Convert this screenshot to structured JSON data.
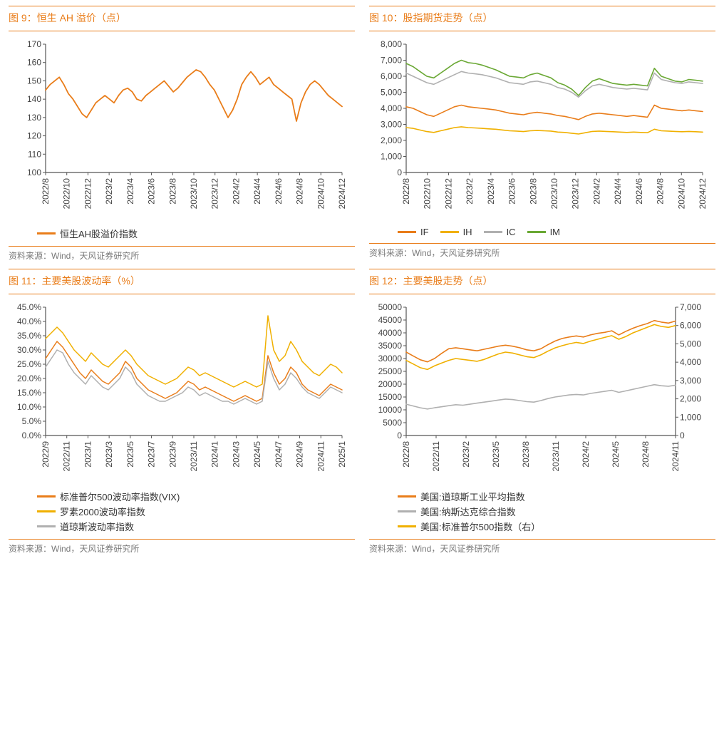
{
  "colors": {
    "orange": "#e97d1a",
    "yellow": "#f0b000",
    "gray": "#b0b0b0",
    "green": "#6aa834",
    "axis": "#555555",
    "grid": "#d9d9d9",
    "text": "#444444"
  },
  "source_text": "资料来源：Wind，天风证券研究所",
  "charts": {
    "c9": {
      "title_prefix": "图 9：",
      "title": "恒生 AH 溢价（点）",
      "type": "line",
      "ylim": [
        100,
        170
      ],
      "ytick_step": 10,
      "x_labels": [
        "2022/8",
        "2022/10",
        "2022/12",
        "2023/2",
        "2023/4",
        "2023/6",
        "2023/8",
        "2023/10",
        "2023/12",
        "2024/2",
        "2024/4",
        "2024/6",
        "2024/8",
        "2024/10",
        "2024/12"
      ],
      "series": [
        {
          "name": "恒生AH股溢价指数",
          "color": "#e97d1a",
          "line_width": 1.8,
          "data": [
            145,
            148,
            150,
            152,
            148,
            143,
            140,
            136,
            132,
            130,
            134,
            138,
            140,
            142,
            140,
            138,
            142,
            145,
            146,
            144,
            140,
            139,
            142,
            144,
            146,
            148,
            150,
            147,
            144,
            146,
            149,
            152,
            154,
            156,
            155,
            152,
            148,
            145,
            140,
            135,
            130,
            134,
            140,
            148,
            152,
            155,
            152,
            148,
            150,
            152,
            148,
            146,
            144,
            142,
            140,
            128,
            138,
            144,
            148,
            150,
            148,
            145,
            142,
            140,
            138,
            136
          ]
        }
      ],
      "legend": [
        {
          "label": "恒生AH股溢价指数",
          "color": "#e97d1a"
        }
      ]
    },
    "c10": {
      "title_prefix": "图 10：",
      "title": "股指期货走势（点）",
      "type": "line",
      "ylim": [
        0,
        8000
      ],
      "ytick_step": 1000,
      "ytick_format": "comma",
      "x_labels": [
        "2022/8",
        "2022/10",
        "2022/12",
        "2023/2",
        "2023/4",
        "2023/6",
        "2023/8",
        "2023/10",
        "2023/12",
        "2024/2",
        "2024/4",
        "2024/6",
        "2024/8",
        "2024/10",
        "2024/12"
      ],
      "series": [
        {
          "name": "IF",
          "color": "#e97d1a",
          "line_width": 1.6,
          "data": [
            4100,
            4000,
            3800,
            3600,
            3500,
            3700,
            3900,
            4100,
            4200,
            4100,
            4050,
            4000,
            3950,
            3900,
            3800,
            3700,
            3650,
            3600,
            3700,
            3750,
            3700,
            3650,
            3550,
            3500,
            3400,
            3300,
            3500,
            3650,
            3700,
            3650,
            3600,
            3550,
            3500,
            3550,
            3500,
            3450,
            4200,
            4000,
            3950,
            3900,
            3850,
            3900,
            3850,
            3800
          ]
        },
        {
          "name": "IH",
          "color": "#f0b000",
          "line_width": 1.6,
          "data": [
            2800,
            2750,
            2650,
            2550,
            2500,
            2600,
            2700,
            2800,
            2850,
            2800,
            2780,
            2750,
            2720,
            2700,
            2650,
            2600,
            2580,
            2550,
            2600,
            2620,
            2600,
            2580,
            2520,
            2500,
            2450,
            2400,
            2480,
            2560,
            2580,
            2560,
            2540,
            2520,
            2500,
            2520,
            2500,
            2480,
            2700,
            2600,
            2580,
            2560,
            2540,
            2560,
            2540,
            2520
          ]
        },
        {
          "name": "IC",
          "color": "#b0b0b0",
          "line_width": 1.6,
          "data": [
            6200,
            6000,
            5800,
            5600,
            5500,
            5700,
            5900,
            6100,
            6300,
            6200,
            6150,
            6100,
            6000,
            5900,
            5750,
            5600,
            5550,
            5500,
            5650,
            5700,
            5600,
            5500,
            5300,
            5200,
            5000,
            4700,
            5100,
            5400,
            5500,
            5400,
            5300,
            5250,
            5200,
            5250,
            5200,
            5150,
            6200,
            5800,
            5700,
            5600,
            5550,
            5650,
            5600,
            5550
          ]
        },
        {
          "name": "IM",
          "color": "#6aa834",
          "line_width": 1.6,
          "data": [
            6800,
            6600,
            6300,
            6000,
            5900,
            6200,
            6500,
            6800,
            7000,
            6850,
            6800,
            6700,
            6550,
            6400,
            6200,
            6000,
            5950,
            5900,
            6100,
            6200,
            6050,
            5900,
            5600,
            5450,
            5200,
            4800,
            5300,
            5700,
            5850,
            5700,
            5550,
            5500,
            5450,
            5500,
            5450,
            5400,
            6500,
            6000,
            5850,
            5700,
            5650,
            5800,
            5750,
            5700
          ]
        }
      ],
      "legend": [
        {
          "label": "IF",
          "color": "#e97d1a"
        },
        {
          "label": "IH",
          "color": "#f0b000"
        },
        {
          "label": "IC",
          "color": "#b0b0b0"
        },
        {
          "label": "IM",
          "color": "#6aa834"
        }
      ]
    },
    "c11": {
      "title_prefix": "图 11：",
      "title": "主要美股波动率（%）",
      "type": "line",
      "ylim": [
        0,
        45
      ],
      "ytick_step": 5,
      "ytick_format": "percent1",
      "x_labels": [
        "2022/9",
        "2022/11",
        "2023/1",
        "2023/3",
        "2023/5",
        "2023/7",
        "2023/9",
        "2023/11",
        "2024/1",
        "2024/3",
        "2024/5",
        "2024/7",
        "2024/9",
        "2024/11",
        "2025/1"
      ],
      "series": [
        {
          "name": "标准普尔500波动率指数(VIX)",
          "color": "#e97d1a",
          "line_width": 1.5,
          "data": [
            27,
            30,
            33,
            31,
            28,
            25,
            22,
            20,
            23,
            21,
            19,
            18,
            20,
            22,
            26,
            24,
            20,
            18,
            16,
            15,
            14,
            13,
            14,
            15,
            17,
            19,
            18,
            16,
            17,
            16,
            15,
            14,
            13,
            12,
            13,
            14,
            13,
            12,
            13,
            28,
            22,
            18,
            20,
            24,
            22,
            18,
            16,
            15,
            14,
            16,
            18,
            17,
            16
          ]
        },
        {
          "name": "罗素2000波动率指数",
          "color": "#f0b000",
          "line_width": 1.5,
          "data": [
            34,
            36,
            38,
            36,
            33,
            30,
            28,
            26,
            29,
            27,
            25,
            24,
            26,
            28,
            30,
            28,
            25,
            23,
            21,
            20,
            19,
            18,
            19,
            20,
            22,
            24,
            23,
            21,
            22,
            21,
            20,
            19,
            18,
            17,
            18,
            19,
            18,
            17,
            18,
            42,
            30,
            26,
            28,
            33,
            30,
            26,
            24,
            22,
            21,
            23,
            25,
            24,
            22
          ]
        },
        {
          "name": "道琼斯波动率指数",
          "color": "#b0b0b0",
          "line_width": 1.5,
          "data": [
            24,
            27,
            30,
            29,
            25,
            22,
            20,
            18,
            21,
            19,
            17,
            16,
            18,
            20,
            24,
            22,
            18,
            16,
            14,
            13,
            12,
            12,
            13,
            14,
            15,
            17,
            16,
            14,
            15,
            14,
            13,
            12,
            12,
            11,
            12,
            13,
            12,
            11,
            12,
            26,
            20,
            16,
            18,
            22,
            20,
            17,
            15,
            14,
            13,
            15,
            17,
            16,
            15
          ]
        }
      ],
      "legend": [
        {
          "label": "标准普尔500波动率指数(VIX)",
          "color": "#e97d1a"
        },
        {
          "label": "罗素2000波动率指数",
          "color": "#f0b000"
        },
        {
          "label": "道琼斯波动率指数",
          "color": "#b0b0b0"
        }
      ]
    },
    "c12": {
      "title_prefix": "图 12：",
      "title": "主要美股走势（点）",
      "type": "line-dual",
      "ylim": [
        0,
        50000
      ],
      "ytick_step": 5000,
      "ylim2": [
        0,
        7000
      ],
      "ytick_step2": 1000,
      "ytick_format2": "comma",
      "x_labels": [
        "2022/8",
        "2022/11",
        "2023/2",
        "2023/5",
        "2023/8",
        "2023/11",
        "2024/2",
        "2024/5",
        "2024/8",
        "2024/11"
      ],
      "series": [
        {
          "name": "美国:道琼斯工业平均指数",
          "color": "#e97d1a",
          "line_width": 1.6,
          "axis": "left",
          "data": [
            32500,
            31000,
            29500,
            28700,
            30000,
            32000,
            33800,
            34200,
            33800,
            33400,
            33000,
            33600,
            34200,
            34800,
            35200,
            34800,
            34200,
            33400,
            33000,
            33800,
            35400,
            36800,
            37800,
            38400,
            38800,
            38400,
            39200,
            39800,
            40200,
            40800,
            39200,
            40600,
            41800,
            42800,
            43600,
            44800,
            44200,
            43800,
            44600
          ]
        },
        {
          "name": "美国:纳斯达克综合指数",
          "color": "#b0b0b0",
          "line_width": 1.6,
          "axis": "left",
          "data": [
            12200,
            11500,
            10800,
            10300,
            10800,
            11200,
            11600,
            12000,
            11800,
            12200,
            12600,
            13000,
            13400,
            13800,
            14200,
            14000,
            13600,
            13200,
            13000,
            13600,
            14400,
            15000,
            15400,
            15800,
            16000,
            15800,
            16400,
            16800,
            17200,
            17600,
            16800,
            17400,
            18000,
            18600,
            19200,
            19800,
            19400,
            19200,
            19600
          ]
        },
        {
          "name": "美国:标准普尔500指数（右）",
          "color": "#f0b000",
          "line_width": 1.6,
          "axis": "right",
          "data": [
            4100,
            3900,
            3700,
            3600,
            3800,
            3950,
            4100,
            4200,
            4150,
            4100,
            4050,
            4150,
            4300,
            4450,
            4550,
            4500,
            4400,
            4300,
            4250,
            4400,
            4600,
            4780,
            4900,
            5000,
            5080,
            5020,
            5150,
            5250,
            5350,
            5450,
            5250,
            5400,
            5600,
            5750,
            5900,
            6050,
            5950,
            5900,
            6000
          ]
        }
      ],
      "legend": [
        {
          "label": "美国:道琼斯工业平均指数",
          "color": "#e97d1a"
        },
        {
          "label": "美国:纳斯达克综合指数",
          "color": "#b0b0b0"
        },
        {
          "label": "美国:标准普尔500指数（右）",
          "color": "#f0b000"
        }
      ]
    }
  }
}
